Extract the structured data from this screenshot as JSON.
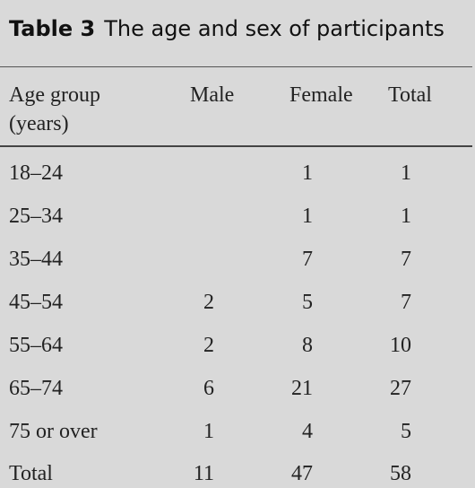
{
  "caption": {
    "label": "Table 3",
    "title": "The age and sex of participants"
  },
  "table": {
    "headers": {
      "age_line1": "Age group",
      "age_line2": "(years)",
      "male": "Male",
      "female": "Female",
      "total": "Total"
    },
    "rows": [
      {
        "age": "18–24",
        "male": "",
        "female": "1",
        "total": "1"
      },
      {
        "age": "25–34",
        "male": "",
        "female": "1",
        "total": "1"
      },
      {
        "age": "35–44",
        "male": "",
        "female": "7",
        "total": "7"
      },
      {
        "age": "45–54",
        "male": "2",
        "female": "5",
        "total": "7"
      },
      {
        "age": "55–64",
        "male": "2",
        "female": "8",
        "total": "10"
      },
      {
        "age": "65–74",
        "male": "6",
        "female": "21",
        "total": "27"
      },
      {
        "age": "75 or over",
        "male": "1",
        "female": "4",
        "total": "5"
      },
      {
        "age": "Total",
        "male": "11",
        "female": "47",
        "total": "58"
      }
    ]
  }
}
